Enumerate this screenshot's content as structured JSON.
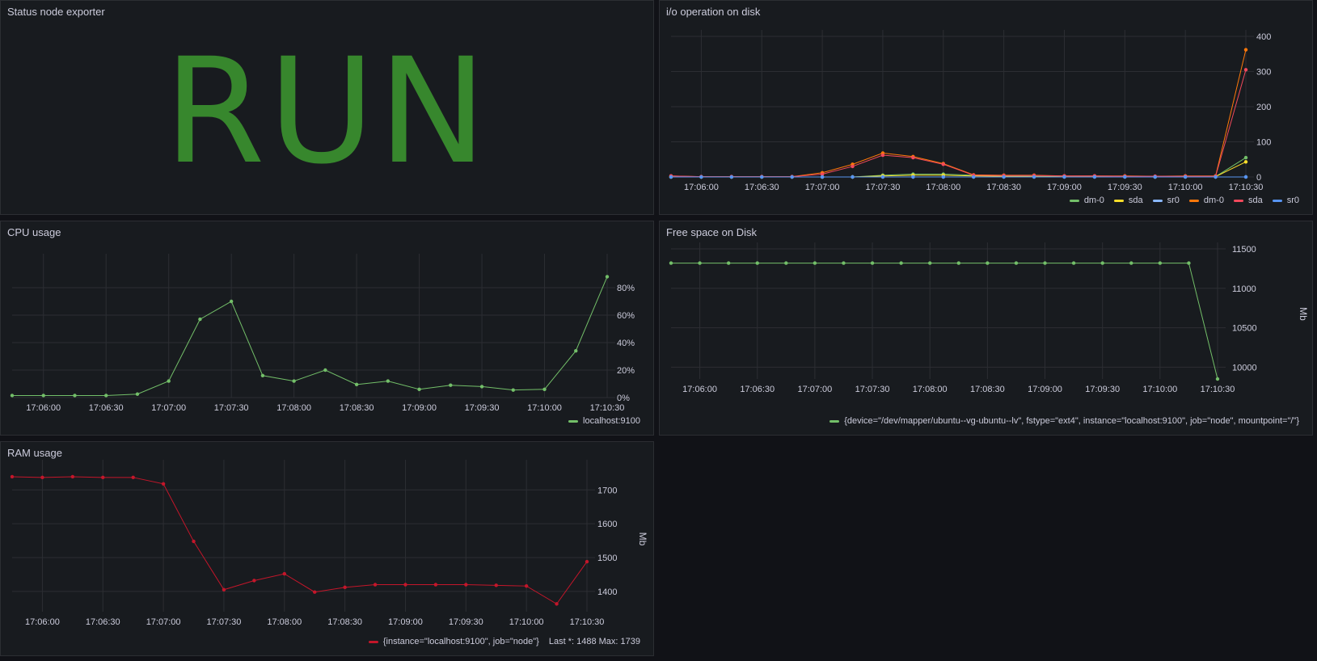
{
  "panels": {
    "status": {
      "title": "Status node exporter",
      "value": "RUN",
      "color": "#37872d"
    },
    "io": {
      "title": "i/o operation on disk"
    },
    "cpu": {
      "title": "CPU usage"
    },
    "disk": {
      "title": "Free space on Disk"
    },
    "ram": {
      "title": "RAM usage"
    }
  },
  "chart_data": [
    {
      "id": "io",
      "type": "line",
      "x_ticks": [
        "17:06:00",
        "17:06:30",
        "17:07:00",
        "17:07:30",
        "17:08:00",
        "17:08:30",
        "17:09:00",
        "17:09:30",
        "17:10:00",
        "17:10:30"
      ],
      "x": [
        "17:05:45",
        "17:06:00",
        "17:06:15",
        "17:06:30",
        "17:06:45",
        "17:07:00",
        "17:07:15",
        "17:07:30",
        "17:07:45",
        "17:08:00",
        "17:08:15",
        "17:08:30",
        "17:08:45",
        "17:09:00",
        "17:09:15",
        "17:09:30",
        "17:09:45",
        "17:10:00",
        "17:10:15",
        "17:10:30"
      ],
      "ylim": [
        0,
        400
      ],
      "y_ticks": [
        0,
        100,
        200,
        300,
        400
      ],
      "grid": true,
      "series": [
        {
          "name": "dm-0",
          "color": "#73bf69",
          "values": [
            0,
            0,
            0,
            0,
            0,
            0,
            0,
            5,
            8,
            8,
            5,
            3,
            2,
            1,
            1,
            1,
            0,
            1,
            1,
            55
          ]
        },
        {
          "name": "sda",
          "color": "#fade2a",
          "values": [
            0,
            0,
            0,
            0,
            0,
            0,
            0,
            3,
            5,
            5,
            3,
            2,
            1,
            1,
            1,
            1,
            0,
            1,
            1,
            43
          ]
        },
        {
          "name": "sr0",
          "color": "#8ab8ff",
          "values": [
            0,
            0,
            0,
            0,
            0,
            0,
            0,
            0,
            0,
            0,
            0,
            0,
            0,
            0,
            0,
            0,
            0,
            0,
            0,
            0
          ]
        },
        {
          "name": "dm-0",
          "color": "#ff780a",
          "values": [
            3,
            1,
            1,
            1,
            1,
            12,
            36,
            68,
            58,
            38,
            6,
            5,
            5,
            3,
            3,
            3,
            2,
            3,
            3,
            362
          ]
        },
        {
          "name": "sda",
          "color": "#f2495c",
          "values": [
            3,
            1,
            1,
            1,
            1,
            8,
            30,
            62,
            55,
            36,
            5,
            4,
            4,
            3,
            3,
            2,
            2,
            2,
            2,
            305
          ]
        },
        {
          "name": "sr0",
          "color": "#5794f2",
          "values": [
            0,
            0,
            0,
            0,
            0,
            0,
            0,
            0,
            0,
            0,
            0,
            0,
            0,
            0,
            0,
            0,
            0,
            0,
            0,
            0
          ]
        }
      ]
    },
    {
      "id": "cpu",
      "type": "line",
      "x_ticks": [
        "17:06:00",
        "17:06:30",
        "17:07:00",
        "17:07:30",
        "17:08:00",
        "17:08:30",
        "17:09:00",
        "17:09:30",
        "17:10:00",
        "17:10:30"
      ],
      "x": [
        "17:05:45",
        "17:06:00",
        "17:06:15",
        "17:06:30",
        "17:06:45",
        "17:07:00",
        "17:07:15",
        "17:07:30",
        "17:07:45",
        "17:08:00",
        "17:08:15",
        "17:08:30",
        "17:08:45",
        "17:09:00",
        "17:09:15",
        "17:09:30",
        "17:09:45",
        "17:10:00",
        "17:10:15",
        "17:10:30"
      ],
      "ylim": [
        0,
        100
      ],
      "y_ticks": [
        0,
        20,
        40,
        60,
        80
      ],
      "y_unit": "%",
      "grid": true,
      "series": [
        {
          "name": "localhost:9100",
          "color": "#73bf69",
          "values": [
            1.5,
            1.5,
            1.5,
            1.5,
            2.5,
            12,
            57,
            70,
            16,
            12,
            20,
            9.5,
            12,
            6,
            9,
            8,
            5.5,
            6,
            34,
            88
          ]
        }
      ]
    },
    {
      "id": "disk",
      "type": "line",
      "x_ticks": [
        "17:06:00",
        "17:06:30",
        "17:07:00",
        "17:07:30",
        "17:08:00",
        "17:08:30",
        "17:09:00",
        "17:09:30",
        "17:10:00",
        "17:10:30"
      ],
      "x": [
        "17:05:45",
        "17:06:00",
        "17:06:15",
        "17:06:30",
        "17:06:45",
        "17:07:00",
        "17:07:15",
        "17:07:30",
        "17:07:45",
        "17:08:00",
        "17:08:15",
        "17:08:30",
        "17:08:45",
        "17:09:00",
        "17:09:15",
        "17:09:30",
        "17:09:45",
        "17:10:00",
        "17:10:15",
        "17:10:30"
      ],
      "ylim": [
        9850,
        11500
      ],
      "y_ticks": [
        10000,
        10500,
        11000,
        11500
      ],
      "ylabel": "Mb",
      "grid": true,
      "series": [
        {
          "name": "{device=\"/dev/mapper/ubuntu--vg-ubuntu--lv\", fstype=\"ext4\", instance=\"localhost:9100\", job=\"node\", mountpoint=\"/\"}",
          "color": "#73bf69",
          "values": [
            11320,
            11320,
            11320,
            11320,
            11320,
            11320,
            11320,
            11320,
            11320,
            11320,
            11320,
            11320,
            11320,
            11320,
            11320,
            11320,
            11320,
            11320,
            11320,
            9850
          ]
        }
      ]
    },
    {
      "id": "ram",
      "type": "line",
      "x_ticks": [
        "17:06:00",
        "17:06:30",
        "17:07:00",
        "17:07:30",
        "17:08:00",
        "17:08:30",
        "17:09:00",
        "17:09:30",
        "17:10:00",
        "17:10:30"
      ],
      "x": [
        "17:05:45",
        "17:06:00",
        "17:06:15",
        "17:06:30",
        "17:06:45",
        "17:07:00",
        "17:07:15",
        "17:07:30",
        "17:07:45",
        "17:08:00",
        "17:08:15",
        "17:08:30",
        "17:08:45",
        "17:09:00",
        "17:09:15",
        "17:09:30",
        "17:09:45",
        "17:10:00",
        "17:10:15",
        "17:10:30"
      ],
      "ylim": [
        1340,
        1770
      ],
      "y_ticks": [
        1400,
        1500,
        1600,
        1700
      ],
      "ylabel": "Mb",
      "grid": true,
      "series": [
        {
          "name": "{instance=\"localhost:9100\", job=\"node\"}",
          "color": "#c4162a",
          "values": [
            1739,
            1737,
            1739,
            1737,
            1737,
            1718,
            1548,
            1405,
            1432,
            1452,
            1398,
            1412,
            1420,
            1420,
            1420,
            1420,
            1418,
            1416,
            1363,
            1488
          ]
        }
      ],
      "legend_stats": "Last *: 1488  Max: 1739"
    }
  ]
}
